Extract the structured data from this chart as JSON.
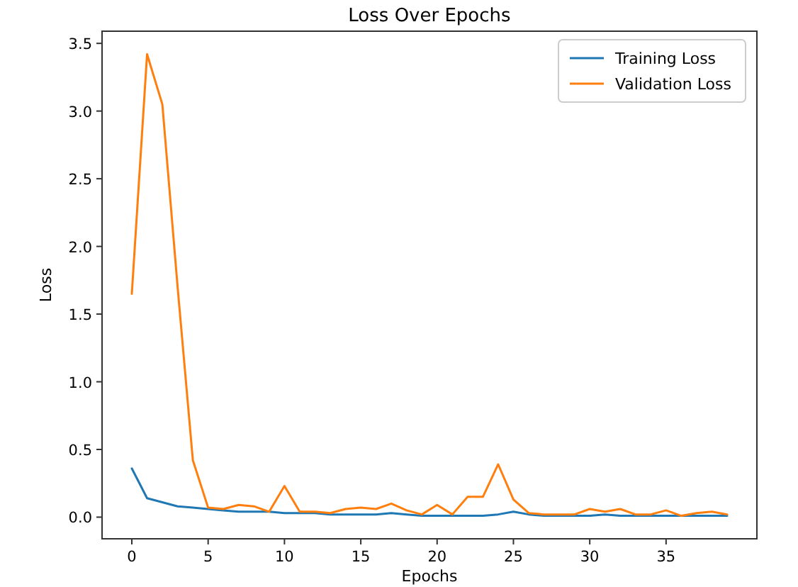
{
  "chart_data": {
    "type": "line",
    "title": "Loss Over Epochs",
    "xlabel": "Epochs",
    "ylabel": "Loss",
    "x": [
      0,
      1,
      2,
      3,
      4,
      5,
      6,
      7,
      8,
      9,
      10,
      11,
      12,
      13,
      14,
      15,
      16,
      17,
      18,
      19,
      20,
      21,
      22,
      23,
      24,
      25,
      26,
      27,
      28,
      29,
      30,
      31,
      32,
      33,
      34,
      35,
      36,
      37,
      38,
      39
    ],
    "series": [
      {
        "name": "Training Loss",
        "color": "#1f77b4",
        "values": [
          0.36,
          0.14,
          0.11,
          0.08,
          0.07,
          0.06,
          0.05,
          0.04,
          0.04,
          0.04,
          0.03,
          0.03,
          0.03,
          0.02,
          0.02,
          0.02,
          0.02,
          0.03,
          0.02,
          0.01,
          0.01,
          0.01,
          0.01,
          0.01,
          0.02,
          0.04,
          0.02,
          0.01,
          0.01,
          0.01,
          0.01,
          0.02,
          0.01,
          0.01,
          0.01,
          0.01,
          0.01,
          0.01,
          0.01,
          0.01
        ]
      },
      {
        "name": "Validation Loss",
        "color": "#ff7f0e",
        "values": [
          1.65,
          3.42,
          3.05,
          1.7,
          0.42,
          0.07,
          0.06,
          0.09,
          0.08,
          0.04,
          0.23,
          0.04,
          0.04,
          0.03,
          0.06,
          0.07,
          0.06,
          0.1,
          0.05,
          0.02,
          0.09,
          0.02,
          0.15,
          0.15,
          0.39,
          0.13,
          0.03,
          0.02,
          0.02,
          0.02,
          0.06,
          0.04,
          0.06,
          0.02,
          0.02,
          0.05,
          0.01,
          0.03,
          0.04,
          0.02
        ]
      }
    ],
    "xlim": [
      -1.95,
      40.95
    ],
    "ylim": [
      -0.16,
      3.59
    ],
    "xticks": [
      0,
      5,
      10,
      15,
      20,
      25,
      30,
      35
    ],
    "yticks": [
      {
        "value": 0,
        "label": "0.0"
      },
      {
        "value": 0.5,
        "label": "0.5"
      },
      {
        "value": 1,
        "label": "1.0"
      },
      {
        "value": 1.5,
        "label": "1.5"
      },
      {
        "value": 2,
        "label": "2.0"
      },
      {
        "value": 2.5,
        "label": "2.5"
      },
      {
        "value": 3,
        "label": "3.0"
      },
      {
        "value": 3.5,
        "label": "3.5"
      }
    ],
    "legend": "top right",
    "grid": false,
    "marker": "none",
    "line_style": "solid"
  }
}
